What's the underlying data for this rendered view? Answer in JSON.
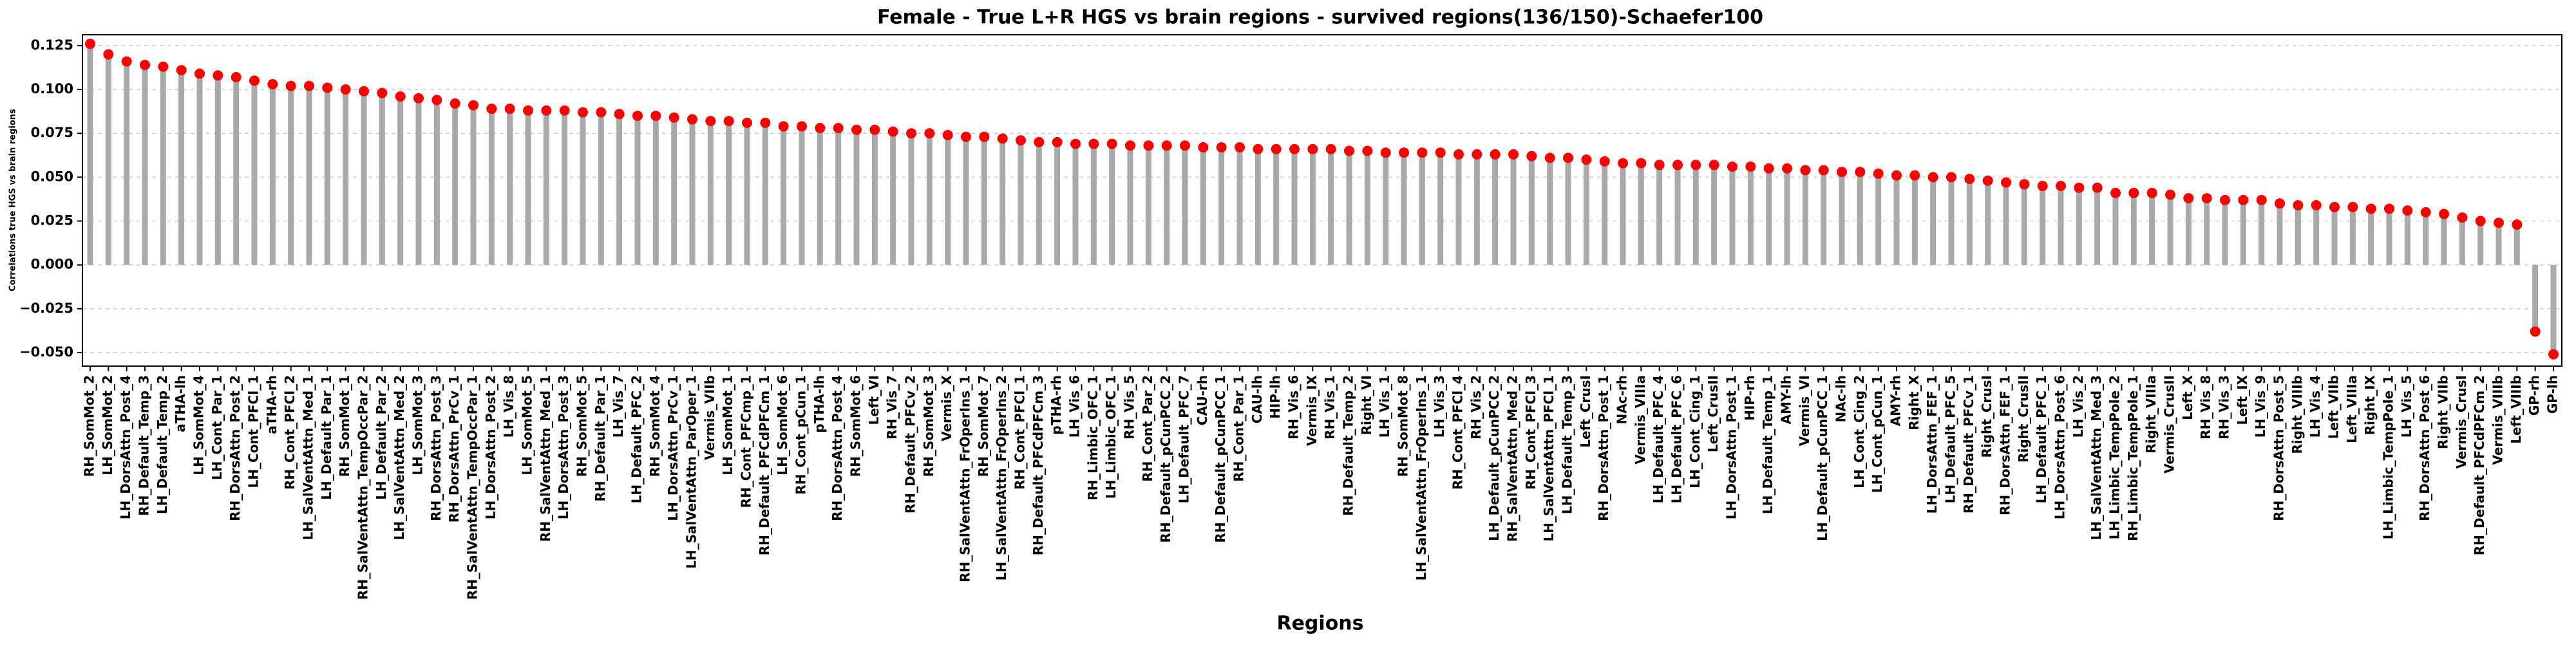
{
  "chart_data": {
    "type": "lollipop",
    "title": "Female - True L+R HGS vs brain regions - survived regions(136/150)-Schaefer100",
    "xlabel": "Regions",
    "ylabel": "Correlations true HGS vs brain regions",
    "categories": [
      "RH_SomMot_2",
      "LH_SomMot_2",
      "LH_DorsAttn_Post_4",
      "RH_Default_Temp_3",
      "LH_Default_Temp_2",
      "aTHA-lh",
      "LH_SomMot_4",
      "LH_Cont_Par_1",
      "RH_DorsAttn_Post_2",
      "LH_Cont_PFCl_1",
      "aTHA-rh",
      "RH_Cont_PFCl_2",
      "LH_SalVentAttn_Med_1",
      "LH_Default_Par_1",
      "RH_SomMot_1",
      "RH_SalVentAttn_TempOccPar_2",
      "LH_Default_Par_2",
      "LH_SalVentAttn_Med_2",
      "LH_SomMot_3",
      "RH_DorsAttn_Post_3",
      "RH_DorsAttn_PrCv_1",
      "RH_SalVentAttn_TempOccPar_1",
      "LH_DorsAttn_Post_2",
      "LH_Vis_8",
      "LH_SomMot_5",
      "RH_SalVentAttn_Med_1",
      "LH_DorsAttn_Post_3",
      "RH_SomMot_5",
      "RH_Default_Par_1",
      "LH_Vis_7",
      "LH_Default_PFC_2",
      "RH_SomMot_4",
      "LH_DorsAttn_PrCv_1",
      "LH_SalVentAttn_ParOper_1",
      "Vermis_VIIb",
      "LH_SomMot_1",
      "RH_Cont_PFCmp_1",
      "RH_Default_PFCdPFCm_1",
      "LH_SomMot_6",
      "RH_Cont_pCun_1",
      "pTHA-lh",
      "RH_DorsAttn_Post_4",
      "RH_SomMot_6",
      "Left_VI",
      "RH_Vis_7",
      "RH_Default_PFCv_2",
      "RH_SomMot_3",
      "Vermis_X",
      "RH_SalVentAttn_FrOperIns_1",
      "RH_SomMot_7",
      "LH_SalVentAttn_FrOperIns_2",
      "RH_Cont_PFCl_1",
      "RH_Default_PFCdPFCm_3",
      "pTHA-rh",
      "LH_Vis_6",
      "RH_Limbic_OFC_1",
      "LH_Limbic_OFC_1",
      "RH_Vis_5",
      "RH_Cont_Par_2",
      "RH_Default_pCunPCC_2",
      "LH_Default_PFC_7",
      "CAU-rh",
      "RH_Default_pCunPCC_1",
      "RH_Cont_Par_1",
      "CAU-lh",
      "HIP-lh",
      "RH_Vis_6",
      "Vermis_IX",
      "RH_Vis_1",
      "RH_Default_Temp_2",
      "Right_VI",
      "LH_Vis_1",
      "RH_SomMot_8",
      "LH_SalVentAttn_FrOperIns_1",
      "LH_Vis_3",
      "RH_Cont_PFCl_4",
      "RH_Vis_2",
      "LH_Default_pCunPCC_2",
      "RH_SalVentAttn_Med_2",
      "RH_Cont_PFCl_3",
      "LH_SalVentAttn_PFCl_1",
      "LH_Default_Temp_3",
      "Left_CrusI",
      "RH_DorsAttn_Post_1",
      "NAc-rh",
      "Vermis_VIIIa",
      "LH_Default_PFC_4",
      "LH_Default_PFC_6",
      "LH_Cont_Cing_1",
      "Left_CrusII",
      "LH_DorsAttn_Post_1",
      "HIP-rh",
      "LH_Default_Temp_1",
      "AMY-lh",
      "Vermis_VI",
      "LH_Default_pCunPCC_1",
      "NAc-lh",
      "LH_Cont_Cing_2",
      "LH_Cont_pCun_1",
      "AMY-rh",
      "Right_X",
      "LH_DorsAttn_FEF_1",
      "LH_Default_PFC_5",
      "RH_Default_PFCv_1",
      "Right_CrusI",
      "RH_DorsAttn_FEF_1",
      "Right_CrusII",
      "LH_Default_PFC_1",
      "LH_DorsAttn_Post_6",
      "LH_Vis_2",
      "LH_SalVentAttn_Med_3",
      "LH_Limbic_TempPole_2",
      "RH_Limbic_TempPole_1",
      "Right_VIIIa",
      "Vermis_CrusII",
      "Left_X",
      "RH_Vis_8",
      "RH_Vis_3",
      "Left_IX",
      "LH_Vis_9",
      "RH_DorsAttn_Post_5",
      "Right_VIIIb",
      "LH_Vis_4",
      "Left_VIIb",
      "Left_VIIIa",
      "Right_IX",
      "LH_Limbic_TempPole_1",
      "LH_Vis_5",
      "RH_DorsAttn_Post_6",
      "Right_VIIb",
      "Vermis_CrusI",
      "RH_Default_PFCdPFCm_2",
      "Vermis_VIIIb",
      "Left_VIIIb",
      "GP-rh",
      "GP-lh"
    ],
    "values": [
      0.126,
      0.12,
      0.116,
      0.114,
      0.113,
      0.111,
      0.109,
      0.108,
      0.107,
      0.105,
      0.103,
      0.102,
      0.102,
      0.101,
      0.1,
      0.099,
      0.098,
      0.096,
      0.095,
      0.094,
      0.092,
      0.091,
      0.089,
      0.089,
      0.088,
      0.088,
      0.088,
      0.087,
      0.087,
      0.086,
      0.085,
      0.085,
      0.084,
      0.083,
      0.082,
      0.082,
      0.081,
      0.081,
      0.079,
      0.079,
      0.078,
      0.078,
      0.077,
      0.077,
      0.076,
      0.075,
      0.075,
      0.074,
      0.073,
      0.073,
      0.072,
      0.071,
      0.07,
      0.07,
      0.069,
      0.069,
      0.069,
      0.068,
      0.068,
      0.068,
      0.068,
      0.067,
      0.067,
      0.067,
      0.066,
      0.066,
      0.066,
      0.066,
      0.066,
      0.065,
      0.065,
      0.064,
      0.064,
      0.064,
      0.064,
      0.063,
      0.063,
      0.063,
      0.063,
      0.062,
      0.061,
      0.061,
      0.06,
      0.059,
      0.058,
      0.058,
      0.057,
      0.057,
      0.057,
      0.057,
      0.056,
      0.056,
      0.055,
      0.055,
      0.054,
      0.054,
      0.053,
      0.053,
      0.052,
      0.051,
      0.051,
      0.05,
      0.05,
      0.049,
      0.048,
      0.047,
      0.046,
      0.045,
      0.045,
      0.044,
      0.044,
      0.041,
      0.041,
      0.041,
      0.04,
      0.038,
      0.038,
      0.037,
      0.037,
      0.037,
      0.035,
      0.034,
      0.034,
      0.033,
      0.033,
      0.032,
      0.032,
      0.031,
      0.03,
      0.029,
      0.027,
      0.025,
      0.024,
      0.023,
      -0.038,
      -0.051
    ],
    "stem_color": "#a9a9a9",
    "color": "#ff0000",
    "ylim": [
      -0.0577,
      0.1312
    ],
    "yticks": [
      {
        "value": -0.05,
        "label": "−0.050"
      },
      {
        "value": -0.025,
        "label": "−0.025"
      },
      {
        "value": 0,
        "label": "0.000"
      },
      {
        "value": 0.025,
        "label": "0.025"
      },
      {
        "value": 0.05,
        "label": "0.050"
      },
      {
        "value": 0.075,
        "label": "0.075"
      },
      {
        "value": 0.1,
        "label": "0.100"
      },
      {
        "value": 0.125,
        "label": "0.125"
      }
    ],
    "grid": true
  }
}
